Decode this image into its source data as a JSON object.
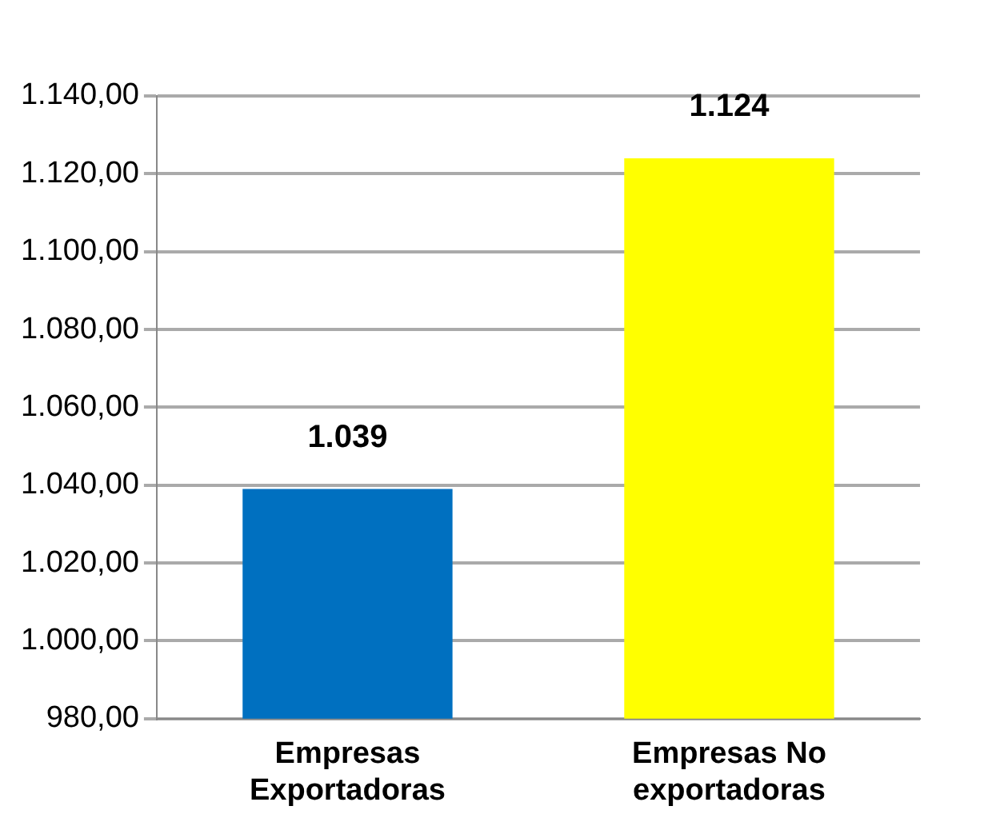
{
  "chart_data": {
    "type": "bar",
    "categories": [
      "Empresas Exportadoras",
      "Empresas No exportadoras"
    ],
    "values": [
      1039,
      1124
    ],
    "colors": [
      "#0070c0",
      "#ffff00"
    ],
    "value_labels": [
      "1.039",
      "1.124"
    ],
    "ylim": [
      980,
      1140
    ],
    "yticks": [
      {
        "value": 980,
        "label": "980,00"
      },
      {
        "value": 1000,
        "label": "1.000,00"
      },
      {
        "value": 1020,
        "label": "1.020,00"
      },
      {
        "value": 1040,
        "label": "1.040,00"
      },
      {
        "value": 1060,
        "label": "1.060,00"
      },
      {
        "value": 1080,
        "label": "1.080,00"
      },
      {
        "value": 1100,
        "label": "1.100,00"
      },
      {
        "value": 1120,
        "label": "1.120,00"
      },
      {
        "value": 1140,
        "label": "1.140,00"
      }
    ],
    "grid": "y",
    "legend": false
  }
}
